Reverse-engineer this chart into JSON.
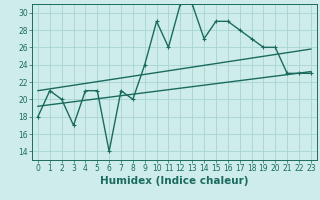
{
  "title": "",
  "xlabel": "Humidex (Indice chaleur)",
  "ylabel": "",
  "xlim": [
    -0.5,
    23.5
  ],
  "ylim": [
    13.0,
    31.0
  ],
  "yticks": [
    14,
    16,
    18,
    20,
    22,
    24,
    26,
    28,
    30
  ],
  "xticks": [
    0,
    1,
    2,
    3,
    4,
    5,
    6,
    7,
    8,
    9,
    10,
    11,
    12,
    13,
    14,
    15,
    16,
    17,
    18,
    19,
    20,
    21,
    22,
    23
  ],
  "background_color": "#ceecea",
  "grid_color": "#a8d5d1",
  "line_color": "#1a6b5e",
  "data_x": [
    0,
    1,
    2,
    3,
    4,
    5,
    6,
    7,
    8,
    9,
    10,
    11,
    12,
    13,
    14,
    15,
    16,
    17,
    18,
    19,
    20,
    21,
    22,
    23
  ],
  "data_y": [
    18,
    21,
    20,
    17,
    21,
    21,
    14,
    21,
    20,
    24,
    29,
    26,
    31,
    31,
    27,
    29,
    29,
    28,
    27,
    26,
    26,
    23,
    23,
    23
  ],
  "trend1_x": [
    0,
    23
  ],
  "trend1_y": [
    21.0,
    25.8
  ],
  "trend2_x": [
    0,
    23
  ],
  "trend2_y": [
    19.2,
    23.2
  ],
  "marker_size": 3.5,
  "line_width": 1.0,
  "tick_fontsize": 5.5,
  "xlabel_fontsize": 7.5
}
